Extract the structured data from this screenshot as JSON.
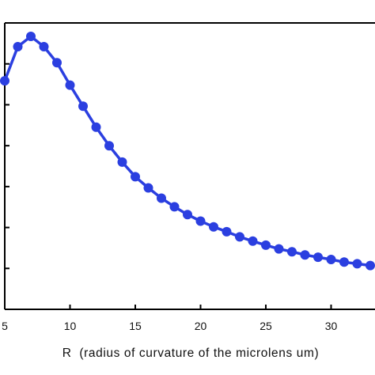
{
  "chart_data": {
    "type": "line",
    "title": "",
    "xlabel": "R  (radius of curvature of the microlens um)",
    "ylabel": "",
    "xlim": [
      5,
      33.5
    ],
    "ylim": [
      0,
      1
    ],
    "x_ticks": [
      5,
      10,
      15,
      20,
      25,
      30
    ],
    "x_tick_labels": [
      "5",
      "10",
      "15",
      "20",
      "25",
      "30"
    ],
    "y_ticks": [
      0,
      0.1429,
      0.2857,
      0.4286,
      0.5714,
      0.7143,
      0.8571,
      1
    ],
    "grid": false,
    "legend": "none",
    "series": [
      {
        "color": "#2b3fe0",
        "marker": "circle",
        "x": [
          5,
          6,
          7,
          8,
          9,
          10,
          11,
          12,
          13,
          14,
          15,
          16,
          17,
          18,
          19,
          20,
          21,
          22,
          23,
          24,
          25,
          26,
          27,
          28,
          29,
          30,
          31,
          32,
          33
        ],
        "y": [
          0.798,
          0.917,
          0.953,
          0.917,
          0.861,
          0.783,
          0.709,
          0.636,
          0.571,
          0.514,
          0.463,
          0.424,
          0.388,
          0.358,
          0.331,
          0.308,
          0.288,
          0.271,
          0.253,
          0.238,
          0.224,
          0.211,
          0.201,
          0.19,
          0.182,
          0.174,
          0.165,
          0.159,
          0.153
        ]
      }
    ]
  }
}
